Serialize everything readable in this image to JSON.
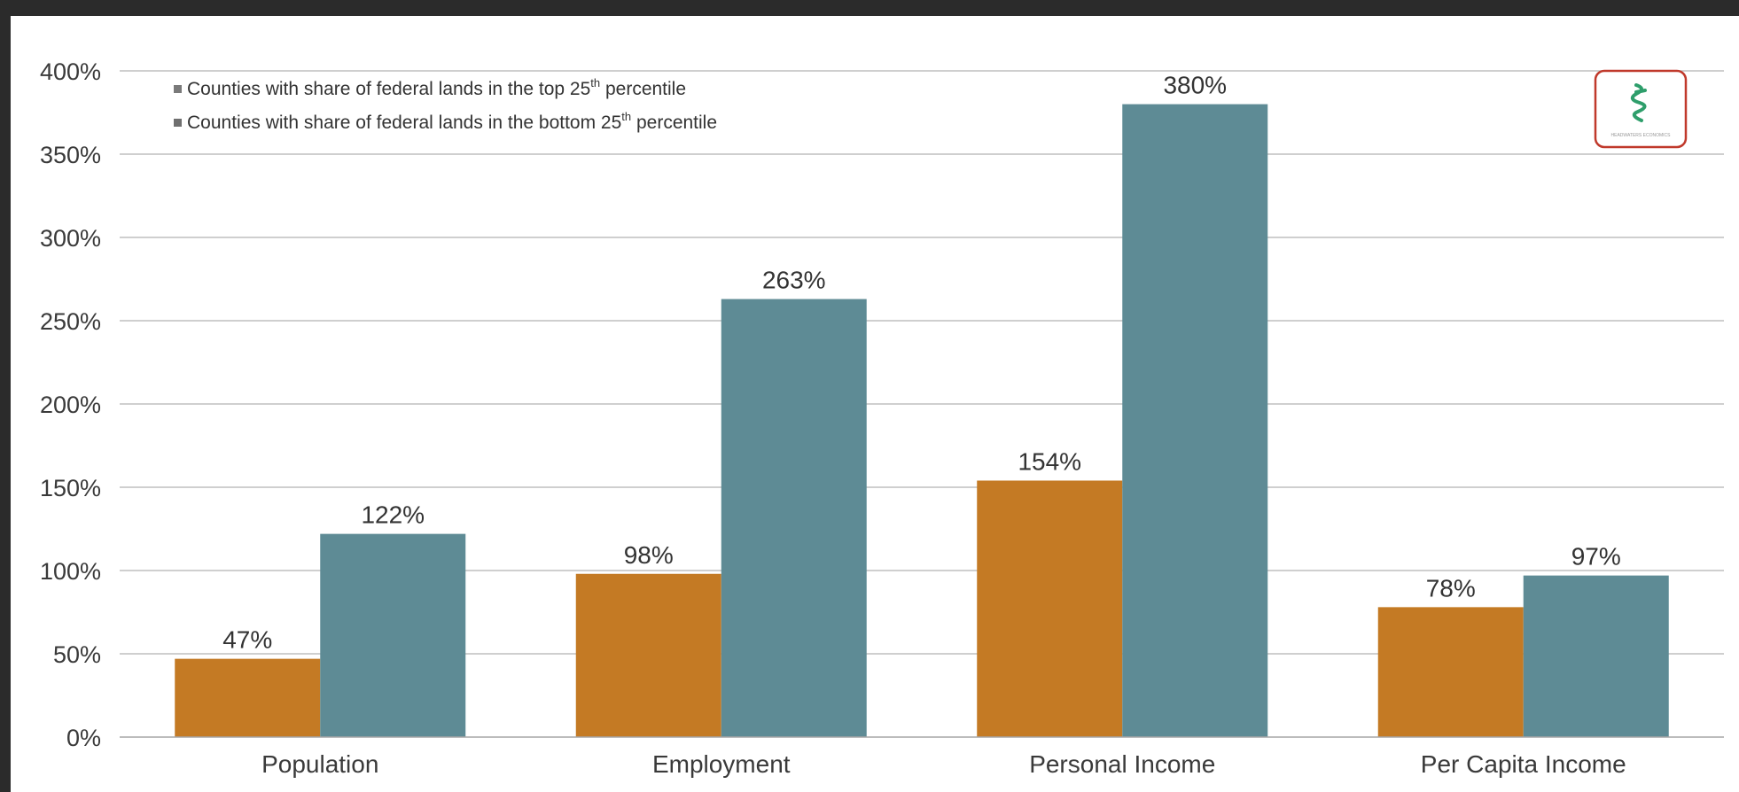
{
  "chart_data": {
    "type": "bar",
    "categories": [
      "Population",
      "Employment",
      "Personal Income",
      "Per Capita Income"
    ],
    "series": [
      {
        "name": "Counties with share of federal lands in the top 25th percentile",
        "values": [
          47,
          98,
          154,
          78
        ],
        "labels": [
          "47%",
          "98%",
          "154%",
          "78%"
        ],
        "color": "#C47A24"
      },
      {
        "name": "Counties with share of federal lands in the bottom 25th percentile",
        "values": [
          122,
          263,
          380,
          97
        ],
        "labels": [
          "122%",
          "263%",
          "380%",
          "97%"
        ],
        "color": "#5E8B95"
      }
    ],
    "ylim": [
      0,
      400
    ],
    "yticks": [
      0,
      50,
      100,
      150,
      200,
      250,
      300,
      350,
      400
    ],
    "ytick_labels": [
      "0%",
      "50%",
      "100%",
      "150%",
      "200%",
      "250%",
      "300%",
      "350%",
      "400%"
    ],
    "grid": true,
    "legend_position": "top-left",
    "legend": [
      {
        "prefix": "Counties with share of federal lands in the top 25",
        "sup": "th",
        "suffix": " percentile"
      },
      {
        "prefix": "Counties with share of federal lands in the bottom 25",
        "sup": "th",
        "suffix": " percentile"
      }
    ]
  },
  "colors": {
    "header_bar": "#2B2B2B",
    "gridline": "#BFBFBF",
    "axis_line": "#A6A6A6",
    "logo_border": "#C0392B",
    "logo_mark": "#2E9E6B"
  },
  "logo": {
    "name": "headwaters-economics-logo",
    "icon": "tree-logo-icon",
    "text": "HEADWATERS ECONOMICS"
  }
}
